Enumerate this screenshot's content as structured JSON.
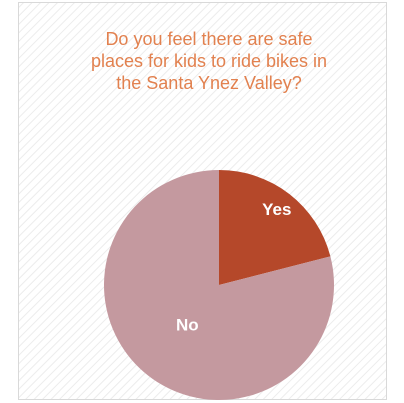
{
  "chart_data": {
    "type": "pie",
    "title": "Do you feel there are safe places for kids to ride bikes in the Santa Ynez Valley?",
    "categories": [
      "Yes",
      "No"
    ],
    "values": [
      21,
      79
    ],
    "colors": [
      "#b5482a",
      "#c4999f"
    ]
  }
}
